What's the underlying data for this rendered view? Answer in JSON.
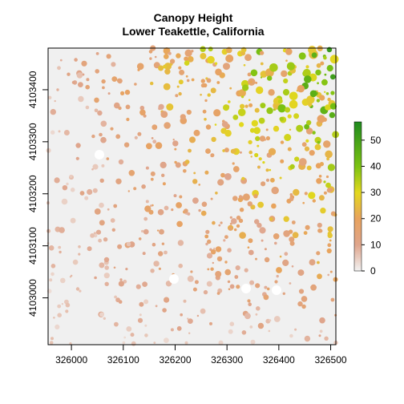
{
  "title_line1": "Canopy Height",
  "title_line2": "Lower Teakettle, California",
  "chart_data": {
    "type": "heatmap",
    "title": "Canopy Height Lower Teakettle, California",
    "xlabel": "",
    "ylabel": "",
    "xlim": [
      325955,
      326510
    ],
    "ylim": [
      4102910,
      4103480
    ],
    "x_ticks": [
      326000,
      326100,
      326200,
      326300,
      326400,
      326500
    ],
    "y_ticks": [
      4103000,
      4103100,
      4103200,
      4103300,
      4103400
    ],
    "x_tick_labels": [
      "326000",
      "326100",
      "326200",
      "326300",
      "326400",
      "326500"
    ],
    "y_tick_labels": [
      "4103000",
      "4103100",
      "4103200",
      "4103300",
      "4103400"
    ],
    "legend": {
      "placement": "right",
      "range": [
        0,
        57
      ],
      "ticks": [
        0,
        10,
        20,
        30,
        40,
        50
      ],
      "tick_labels": [
        "0",
        "10",
        "20",
        "30",
        "40",
        "50"
      ]
    },
    "background_value": 0,
    "colors": {
      "zero": "#f0f0f0",
      "stops": [
        {
          "value": 0,
          "color": "#f2f2f2"
        },
        {
          "value": 10,
          "color": "#dfa58c"
        },
        {
          "value": 20,
          "color": "#e8a35e"
        },
        {
          "value": 30,
          "color": "#e3d81e"
        },
        {
          "value": 40,
          "color": "#7bc212"
        },
        {
          "value": 57,
          "color": "#1f8a1f"
        }
      ],
      "nodata": "#ffffff"
    }
  }
}
